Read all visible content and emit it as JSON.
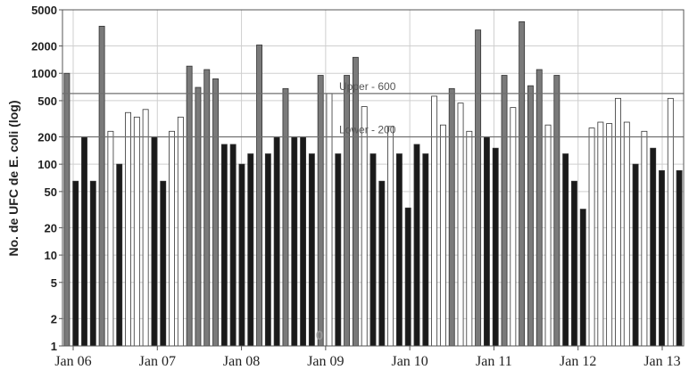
{
  "chart_data": {
    "type": "bar",
    "ylabel": "No. de UFC de E. coli (log)",
    "yscale": "log",
    "ylim": [
      1,
      5000
    ],
    "ytick_labels": [
      "5000",
      "2000",
      "1000",
      "500",
      "200",
      "100",
      "50",
      "20",
      "10",
      "5",
      "2",
      "1"
    ],
    "ytick_values": [
      5000,
      2000,
      1000,
      500,
      200,
      100,
      50,
      20,
      10,
      5,
      2,
      1
    ],
    "x_labels": [
      "Jan 06",
      "Jan 07",
      "Jan 08",
      "Jan 09",
      "Jan 10",
      "Jan 11",
      "Jan 12",
      "Jan 13"
    ],
    "grid": true,
    "reference_lines": [
      {
        "label": "Upper - 600",
        "value": 600
      },
      {
        "label": "Lower - 200",
        "value": 200
      }
    ],
    "zero_annotation": "0",
    "colors": {
      "black": "#1a1a1a",
      "gray": "#7a7a7a",
      "white": "#ffffff",
      "refline": "#707070"
    },
    "bars": [
      {
        "v": 1000,
        "c": "gray"
      },
      {
        "v": 65,
        "c": "black"
      },
      {
        "v": 200,
        "c": "black"
      },
      {
        "v": 65,
        "c": "black"
      },
      {
        "v": 3300,
        "c": "gray"
      },
      {
        "v": 230,
        "c": "white"
      },
      {
        "v": 100,
        "c": "black"
      },
      {
        "v": 370,
        "c": "white"
      },
      {
        "v": 330,
        "c": "white"
      },
      {
        "v": 400,
        "c": "white"
      },
      {
        "v": 200,
        "c": "black"
      },
      {
        "v": 65,
        "c": "black"
      },
      {
        "v": 230,
        "c": "white"
      },
      {
        "v": 330,
        "c": "white"
      },
      {
        "v": 1200,
        "c": "gray"
      },
      {
        "v": 700,
        "c": "gray"
      },
      {
        "v": 1100,
        "c": "gray"
      },
      {
        "v": 870,
        "c": "gray"
      },
      {
        "v": 165,
        "c": "black"
      },
      {
        "v": 165,
        "c": "black"
      },
      {
        "v": 100,
        "c": "black"
      },
      {
        "v": 130,
        "c": "black"
      },
      {
        "v": 2050,
        "c": "gray"
      },
      {
        "v": 130,
        "c": "black"
      },
      {
        "v": 200,
        "c": "black"
      },
      {
        "v": 680,
        "c": "gray"
      },
      {
        "v": 200,
        "c": "black"
      },
      {
        "v": 200,
        "c": "black"
      },
      {
        "v": 130,
        "c": "black"
      },
      {
        "v": 950,
        "c": "gray"
      },
      {
        "v": 600,
        "c": "white"
      },
      {
        "v": 130,
        "c": "black"
      },
      {
        "v": 950,
        "c": "gray"
      },
      {
        "v": 1500,
        "c": "gray"
      },
      {
        "v": 430,
        "c": "white"
      },
      {
        "v": 130,
        "c": "black"
      },
      {
        "v": 65,
        "c": "black"
      },
      {
        "v": 260,
        "c": "white"
      },
      {
        "v": 130,
        "c": "black"
      },
      {
        "v": 33,
        "c": "black"
      },
      {
        "v": 165,
        "c": "black"
      },
      {
        "v": 130,
        "c": "black"
      },
      {
        "v": 560,
        "c": "white"
      },
      {
        "v": 270,
        "c": "white"
      },
      {
        "v": 680,
        "c": "gray"
      },
      {
        "v": 470,
        "c": "white"
      },
      {
        "v": 230,
        "c": "white"
      },
      {
        "v": 3000,
        "c": "gray"
      },
      {
        "v": 200,
        "c": "black"
      },
      {
        "v": 150,
        "c": "black"
      },
      {
        "v": 950,
        "c": "gray"
      },
      {
        "v": 420,
        "c": "white"
      },
      {
        "v": 3700,
        "c": "gray"
      },
      {
        "v": 730,
        "c": "gray"
      },
      {
        "v": 1100,
        "c": "gray"
      },
      {
        "v": 270,
        "c": "white"
      },
      {
        "v": 950,
        "c": "gray"
      },
      {
        "v": 130,
        "c": "black"
      },
      {
        "v": 65,
        "c": "black"
      },
      {
        "v": 32,
        "c": "black"
      },
      {
        "v": 250,
        "c": "white"
      },
      {
        "v": 290,
        "c": "white"
      },
      {
        "v": 280,
        "c": "white"
      },
      {
        "v": 530,
        "c": "white"
      },
      {
        "v": 290,
        "c": "white"
      },
      {
        "v": 100,
        "c": "black"
      },
      {
        "v": 230,
        "c": "white"
      },
      {
        "v": 150,
        "c": "black"
      },
      {
        "v": 85,
        "c": "black"
      },
      {
        "v": 530,
        "c": "white"
      },
      {
        "v": 85,
        "c": "black"
      }
    ]
  }
}
